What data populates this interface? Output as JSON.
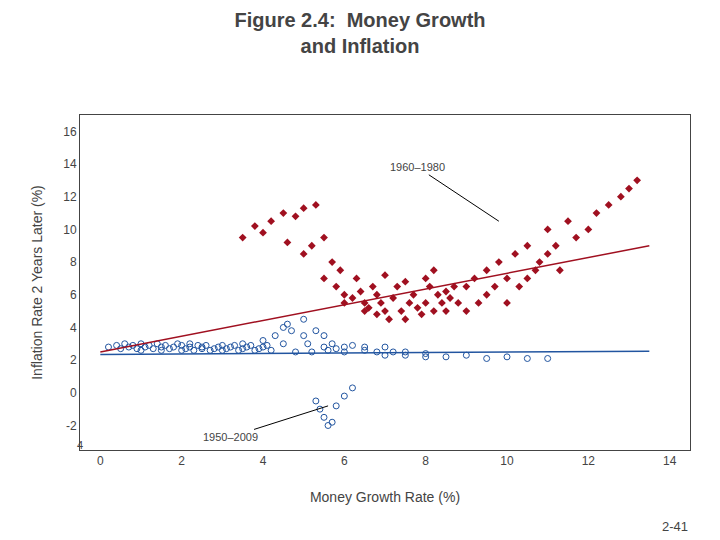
{
  "chart_data": {
    "type": "scatter",
    "title": [
      "Figure 2.4:  Money Growth",
      "and Inflation"
    ],
    "x_label": "Money Growth Rate (%)",
    "y_label": "Inflation Rate 2 Years Later (%)",
    "xlim": [
      -0.5,
      14.5
    ],
    "ylim": [
      -3.5,
      17
    ],
    "xticks": [
      0,
      2,
      4,
      6,
      8,
      10,
      12,
      14
    ],
    "yticks": [
      -2,
      0,
      2,
      4,
      6,
      8,
      10,
      12,
      14,
      16
    ],
    "grid": false,
    "series": [
      {
        "type": "scatter",
        "marker": "circle-open",
        "color": "#2255a0",
        "x": [
          0.2,
          0.4,
          0.5,
          0.6,
          0.7,
          0.8,
          0.9,
          1.0,
          1.0,
          1.1,
          1.2,
          1.3,
          1.4,
          1.5,
          1.5,
          1.6,
          1.7,
          1.8,
          1.9,
          2.0,
          2.0,
          2.1,
          2.2,
          2.2,
          2.3,
          2.4,
          2.5,
          2.5,
          2.6,
          2.7,
          2.8,
          2.9,
          3.0,
          3.0,
          3.1,
          3.2,
          3.3,
          3.4,
          3.5,
          3.5,
          3.6,
          3.7,
          3.8,
          3.9,
          4.0,
          4.0,
          4.1,
          4.2,
          4.3,
          4.5,
          4.5,
          4.6,
          4.7,
          4.8,
          5.0,
          5.0,
          5.1,
          5.2,
          5.3,
          5.5,
          5.5,
          5.6,
          5.7,
          5.8,
          6.0,
          6.0,
          6.2,
          6.5,
          6.5,
          6.8,
          7.0,
          7.0,
          7.2,
          7.5,
          7.5,
          8.0,
          8.0,
          8.5,
          9.0,
          9.5,
          10.0,
          10.5,
          11.0,
          5.3,
          5.4,
          5.5,
          5.6,
          5.7,
          5.8,
          6.0,
          6.2
        ],
        "values": [
          2.8,
          2.9,
          2.7,
          3.0,
          2.8,
          2.9,
          2.7,
          3.0,
          2.6,
          2.8,
          2.9,
          2.7,
          3.0,
          2.8,
          2.6,
          2.9,
          2.7,
          2.8,
          3.0,
          2.6,
          2.9,
          2.7,
          2.8,
          3.0,
          2.6,
          2.9,
          2.7,
          2.8,
          2.9,
          2.6,
          2.7,
          2.8,
          2.9,
          2.6,
          2.7,
          2.8,
          2.9,
          2.6,
          2.7,
          3.0,
          2.8,
          2.9,
          2.6,
          2.7,
          2.8,
          3.2,
          2.9,
          2.6,
          3.5,
          4.0,
          3.0,
          4.2,
          3.8,
          2.5,
          3.5,
          4.5,
          3.0,
          2.5,
          3.8,
          2.8,
          3.5,
          2.6,
          3.0,
          2.7,
          2.8,
          2.5,
          2.9,
          2.6,
          2.8,
          2.5,
          2.8,
          2.3,
          2.5,
          2.3,
          2.5,
          2.2,
          2.4,
          2.2,
          2.3,
          2.1,
          2.2,
          2.1,
          2.1,
          -0.5,
          -1.0,
          -1.5,
          -2.0,
          -1.8,
          -0.8,
          -0.2,
          0.3
        ]
      },
      {
        "type": "scatter",
        "marker": "diamond",
        "color": "#a01020",
        "x": [
          3.5,
          3.8,
          4.0,
          4.2,
          4.5,
          4.6,
          4.8,
          5.0,
          5.0,
          5.2,
          5.3,
          5.5,
          5.5,
          5.7,
          5.8,
          5.9,
          6.0,
          6.0,
          6.2,
          6.3,
          6.4,
          6.5,
          6.5,
          6.6,
          6.7,
          6.8,
          6.8,
          6.9,
          7.0,
          7.0,
          7.1,
          7.2,
          7.3,
          7.4,
          7.5,
          7.5,
          7.6,
          7.7,
          7.8,
          7.9,
          8.0,
          8.0,
          8.1,
          8.2,
          8.2,
          8.3,
          8.4,
          8.5,
          8.5,
          8.6,
          8.7,
          8.8,
          9.0,
          9.0,
          9.2,
          9.3,
          9.5,
          9.5,
          9.7,
          9.8,
          10.0,
          10.0,
          10.2,
          10.3,
          10.5,
          10.5,
          10.7,
          10.8,
          11.0,
          11.0,
          11.2,
          11.3,
          11.5,
          11.7,
          12.0,
          12.2,
          12.5,
          12.8,
          13.0,
          13.2
        ],
        "values": [
          9.5,
          10.2,
          9.8,
          10.5,
          11.0,
          9.2,
          10.8,
          11.3,
          8.5,
          9.0,
          11.5,
          9.5,
          7.0,
          8.0,
          6.5,
          7.5,
          5.5,
          6.0,
          5.8,
          7.0,
          6.2,
          5.0,
          5.5,
          5.2,
          6.5,
          4.8,
          6.0,
          5.5,
          5.0,
          7.2,
          4.5,
          5.8,
          6.5,
          5.0,
          4.5,
          6.8,
          5.5,
          6.0,
          5.2,
          4.8,
          5.5,
          7.0,
          6.5,
          5.0,
          7.5,
          6.0,
          5.5,
          5.0,
          6.2,
          5.8,
          6.5,
          5.5,
          5.0,
          6.5,
          7.0,
          5.5,
          6.0,
          7.5,
          6.5,
          8.0,
          5.5,
          7.0,
          8.5,
          6.5,
          7.0,
          9.0,
          7.5,
          8.0,
          8.5,
          10.0,
          9.0,
          7.5,
          10.5,
          9.5,
          10.0,
          11.0,
          11.5,
          12.0,
          12.5,
          13.0
        ]
      },
      {
        "type": "line",
        "line_style": "solid",
        "color": "#a01020",
        "x": [
          0,
          13.5
        ],
        "values": [
          2.5,
          9.0
        ]
      },
      {
        "type": "line",
        "line_style": "solid",
        "color": "#2255a0",
        "x": [
          0,
          13.5
        ],
        "values": [
          2.35,
          2.55
        ]
      }
    ],
    "annotations": [
      {
        "text": "1960–1980",
        "x": 9.8,
        "y": 10.5,
        "text_x": 7.8,
        "text_y": 13.8
      },
      {
        "text": "1950–2009",
        "x": 5.6,
        "y": -0.8,
        "text_x": 3.2,
        "text_y": -2.7
      },
      {
        "text": "4",
        "x": -0.5,
        "y": -3.2
      },
      {
        "text": "2-41"
      }
    ]
  }
}
